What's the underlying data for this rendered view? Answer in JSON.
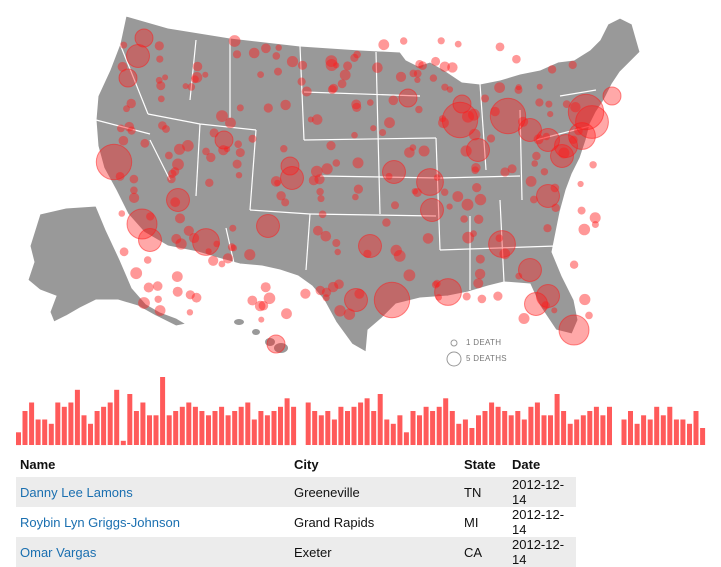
{
  "map": {
    "fill_color": "#999999",
    "border_color": "#ffffff",
    "marker_color": "#ff1a1a",
    "markers": [
      {
        "place": "Seattle",
        "deaths": 1
      },
      {
        "place": "Tacoma",
        "deaths": 2
      },
      {
        "place": "Portland",
        "deaths": 1
      },
      {
        "place": "San Francisco Bay Area",
        "deaths": 6
      },
      {
        "place": "Los Angeles",
        "deaths": 4
      },
      {
        "place": "San Diego",
        "deaths": 2
      },
      {
        "place": "Phoenix",
        "deaths": 3
      },
      {
        "place": "Las Vegas",
        "deaths": 2
      },
      {
        "place": "Salt Lake City",
        "deaths": 1
      },
      {
        "place": "Denver",
        "deaths": 1
      },
      {
        "place": "Colorado Springs",
        "deaths": 2
      },
      {
        "place": "Albuquerque",
        "deaths": 2
      },
      {
        "place": "Dallas",
        "deaths": 2
      },
      {
        "place": "Houston",
        "deaths": 6
      },
      {
        "place": "San Antonio",
        "deaths": 2
      },
      {
        "place": "New Orleans",
        "deaths": 3
      },
      {
        "place": "Memphis",
        "deaths": 2
      },
      {
        "place": "Atlanta",
        "deaths": 3
      },
      {
        "place": "Chicago",
        "deaths": 6
      },
      {
        "place": "Detroit",
        "deaths": 6
      },
      {
        "place": "St. Louis",
        "deaths": 3
      },
      {
        "place": "Kansas City",
        "deaths": 2
      },
      {
        "place": "Minneapolis",
        "deaths": 1
      },
      {
        "place": "Milwaukee",
        "deaths": 1
      },
      {
        "place": "Indianapolis",
        "deaths": 2
      },
      {
        "place": "Cleveland",
        "deaths": 2
      },
      {
        "place": "Pittsburgh",
        "deaths": 2
      },
      {
        "place": "Philadelphia",
        "deaths": 3
      },
      {
        "place": "New York City",
        "deaths": 5
      },
      {
        "place": "Newtown",
        "deaths": 6
      },
      {
        "place": "Boston",
        "deaths": 1
      },
      {
        "place": "Baltimore",
        "deaths": 2
      },
      {
        "place": "Washington DC",
        "deaths": 2
      },
      {
        "place": "Charlotte",
        "deaths": 2
      },
      {
        "place": "Jacksonville",
        "deaths": 2
      },
      {
        "place": "Tampa",
        "deaths": 2
      },
      {
        "place": "Orlando",
        "deaths": 2
      },
      {
        "place": "Miami",
        "deaths": 4
      },
      {
        "place": "Honolulu",
        "deaths": 1
      }
    ]
  },
  "legend": {
    "small_label": "1 DEATH",
    "large_label": "5 DEATHS"
  },
  "timeline": {
    "bar_color": "#ff5a5a",
    "counts": [
      3,
      8,
      10,
      6,
      6,
      5,
      10,
      9,
      10,
      13,
      7,
      5,
      8,
      9,
      10,
      13,
      1,
      12,
      8,
      10,
      7,
      7,
      16,
      7,
      8,
      9,
      10,
      9,
      8,
      7,
      8,
      9,
      7,
      8,
      9,
      10,
      6,
      8,
      7,
      8,
      9,
      11,
      9,
      10,
      8,
      7,
      8,
      6,
      9,
      8,
      9,
      10,
      11,
      8,
      12,
      6,
      5,
      7,
      3,
      8,
      7,
      9,
      8,
      9,
      11,
      8,
      5,
      6,
      4,
      7,
      8,
      10,
      9,
      8,
      7,
      8,
      6,
      9,
      10,
      7,
      7,
      12,
      8,
      5,
      6,
      7,
      8,
      9,
      7,
      9,
      6,
      8,
      5,
      7,
      6,
      9,
      7,
      9,
      6,
      6,
      5,
      8,
      4,
      7,
      6,
      8,
      5,
      7,
      6,
      9,
      10,
      8,
      6,
      7,
      8,
      6,
      5,
      10,
      9,
      8,
      10,
      7,
      11,
      8,
      9,
      7,
      8,
      6,
      5,
      6,
      7,
      8,
      10,
      9,
      8,
      6,
      5,
      7,
      4,
      9,
      6,
      8,
      9,
      8,
      8,
      9,
      6,
      4,
      10
    ],
    "gaps_after": [
      42,
      89,
      116
    ]
  },
  "table": {
    "headers": {
      "name": "Name",
      "city": "City",
      "state": "State",
      "date": "Date"
    },
    "rows": [
      {
        "name": "Danny Lee Lamons",
        "city": "Greeneville",
        "state": "TN",
        "date": "2012-12-14"
      },
      {
        "name": "Roybin Lyn Griggs-Johnson",
        "city": "Grand Rapids",
        "state": "MI",
        "date": "2012-12-14"
      },
      {
        "name": "Omar Vargas",
        "city": "Exeter",
        "state": "CA",
        "date": "2012-12-14"
      }
    ]
  }
}
